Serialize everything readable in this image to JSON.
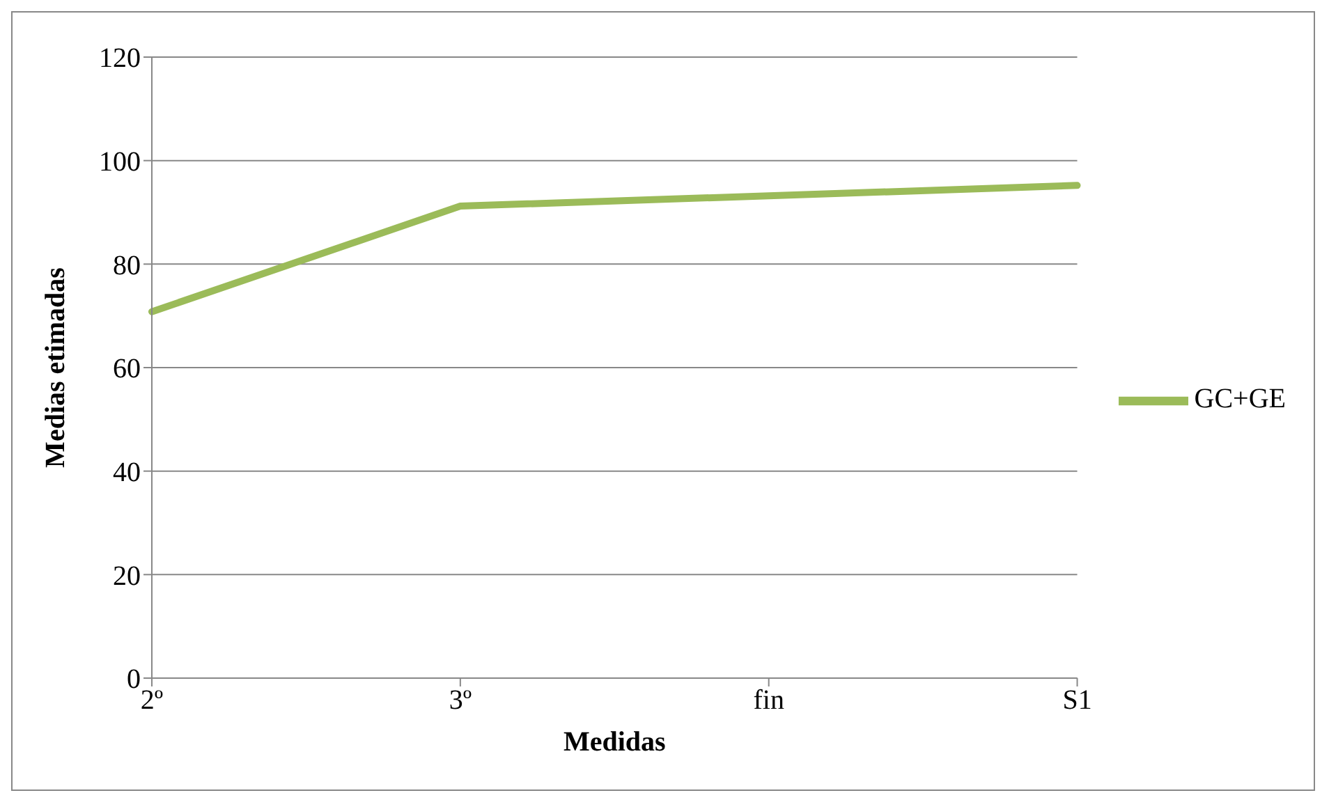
{
  "chart_data": {
    "type": "line",
    "xlabel": "Medidas",
    "ylabel": "Medias etimadas",
    "categories": [
      "2º",
      "3º",
      "fin",
      "S1"
    ],
    "series": [
      {
        "name": "GC+GE",
        "color": "#9bbb59",
        "values": [
          70.8,
          91.2,
          93.2,
          95.2
        ]
      }
    ],
    "ylim": [
      0,
      120
    ],
    "yticks": [
      0,
      20,
      40,
      60,
      80,
      100,
      120
    ],
    "grid": "y",
    "legend": "right",
    "marker": "none",
    "line_style": "solid"
  }
}
